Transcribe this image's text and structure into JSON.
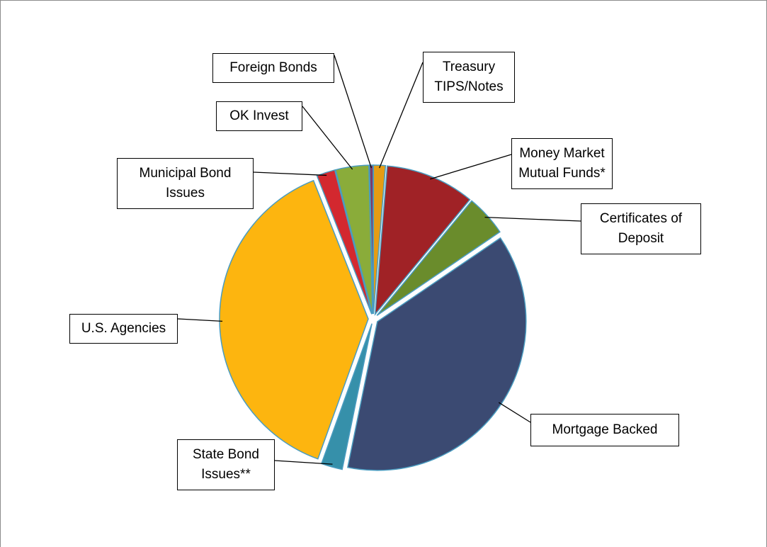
{
  "chart_data": {
    "type": "pie",
    "categories": [
      "Treasury TIPS/Notes",
      "Money Market Mutual Funds*",
      "Certificates of Deposit",
      "Mortgage Backed",
      "State Bond Issues**",
      "U.S. Agencies",
      "Municipal Bond Issues",
      "OK Invest",
      "Foreign Bonds"
    ],
    "values": [
      1.3,
      9.7,
      4.5,
      37.7,
      2.3,
      38.5,
      2.0,
      3.6,
      0.4
    ],
    "colors": [
      "#e59c14",
      "#a02226",
      "#6a8c2c",
      "#3b4a72",
      "#3690aa",
      "#fdb50f",
      "#d3282f",
      "#8aac3a",
      "#7b3a6b"
    ]
  }
}
